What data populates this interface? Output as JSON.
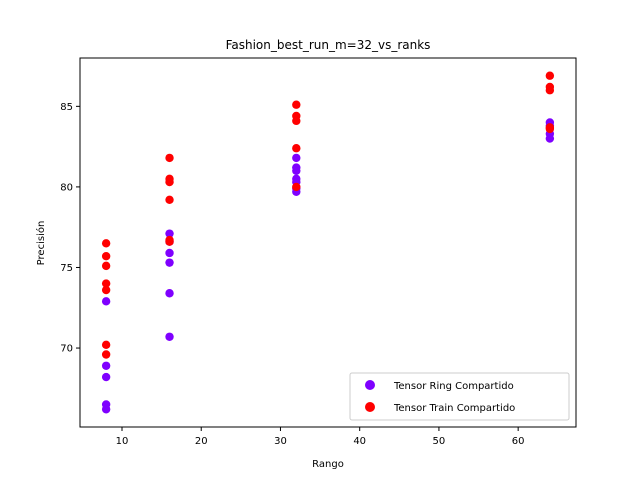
{
  "chart_data": {
    "type": "scatter",
    "title": "Fashion_best_run_m=32_vs_ranks",
    "xlabel": "Rango",
    "ylabel": "Precisión",
    "xlim": [
      4.7,
      67.3
    ],
    "ylim": [
      65.1,
      88.0
    ],
    "xticks": [
      10,
      20,
      30,
      40,
      50,
      60
    ],
    "yticks": [
      70,
      75,
      80,
      85
    ],
    "grid": false,
    "legend_position": "lower-right",
    "series": [
      {
        "name": "Tensor Ring Compartido",
        "color": "#7f00ff",
        "points": [
          [
            8,
            72.9
          ],
          [
            8,
            68.9
          ],
          [
            8,
            68.2
          ],
          [
            8,
            66.5
          ],
          [
            8,
            66.2
          ],
          [
            16,
            77.1
          ],
          [
            16,
            76.6
          ],
          [
            16,
            75.9
          ],
          [
            16,
            75.3
          ],
          [
            16,
            73.4
          ],
          [
            16,
            70.7
          ],
          [
            32,
            81.8
          ],
          [
            32,
            81.2
          ],
          [
            32,
            81.0
          ],
          [
            32,
            80.5
          ],
          [
            32,
            80.3
          ],
          [
            32,
            79.9
          ],
          [
            32,
            79.7
          ],
          [
            64,
            84.0
          ],
          [
            64,
            83.8
          ],
          [
            64,
            83.3
          ],
          [
            64,
            83.0
          ]
        ]
      },
      {
        "name": "Tensor Train Compartido",
        "color": "#ff0000",
        "points": [
          [
            8,
            76.5
          ],
          [
            8,
            75.7
          ],
          [
            8,
            75.1
          ],
          [
            8,
            74.0
          ],
          [
            8,
            73.6
          ],
          [
            8,
            70.2
          ],
          [
            8,
            69.6
          ],
          [
            16,
            81.8
          ],
          [
            16,
            80.5
          ],
          [
            16,
            80.3
          ],
          [
            16,
            79.2
          ],
          [
            16,
            76.7
          ],
          [
            16,
            76.6
          ],
          [
            32,
            85.1
          ],
          [
            32,
            84.4
          ],
          [
            32,
            84.1
          ],
          [
            32,
            82.4
          ],
          [
            32,
            80.0
          ],
          [
            64,
            86.9
          ],
          [
            64,
            86.2
          ],
          [
            64,
            86.0
          ],
          [
            64,
            83.7
          ],
          [
            64,
            83.6
          ]
        ]
      }
    ]
  }
}
